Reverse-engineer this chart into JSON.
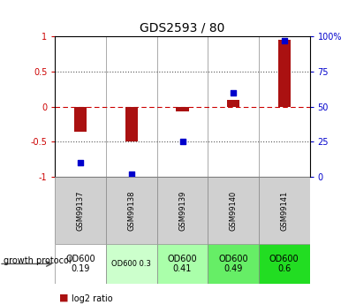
{
  "title": "GDS2593 / 80",
  "samples": [
    "GSM99137",
    "GSM99138",
    "GSM99139",
    "GSM99140",
    "GSM99141"
  ],
  "log2_ratio": [
    -0.35,
    -0.5,
    -0.07,
    0.1,
    0.95
  ],
  "percentile_rank_pct": [
    10,
    2,
    25,
    60,
    97
  ],
  "ylim_left": [
    -1.0,
    1.0
  ],
  "ylim_right": [
    0,
    100
  ],
  "bar_color": "#aa1111",
  "scatter_color": "#0000cc",
  "dotted_line_color": "#555555",
  "zero_line_color": "#cc0000",
  "growth_labels": [
    "OD600\n0.19",
    "OD600 0.3",
    "OD600\n0.41",
    "OD600\n0.49",
    "OD600\n0.6"
  ],
  "growth_colors": [
    "#ffffff",
    "#ccffcc",
    "#aaffaa",
    "#66ee66",
    "#22dd22"
  ],
  "growth_fontsize": [
    7,
    6,
    7,
    7,
    7
  ],
  "legend_log2_color": "#aa1111",
  "legend_pct_color": "#0000cc",
  "right_axis_color": "#0000cc",
  "left_axis_color": "#cc0000",
  "bar_width": 0.25,
  "scatter_size": 18
}
